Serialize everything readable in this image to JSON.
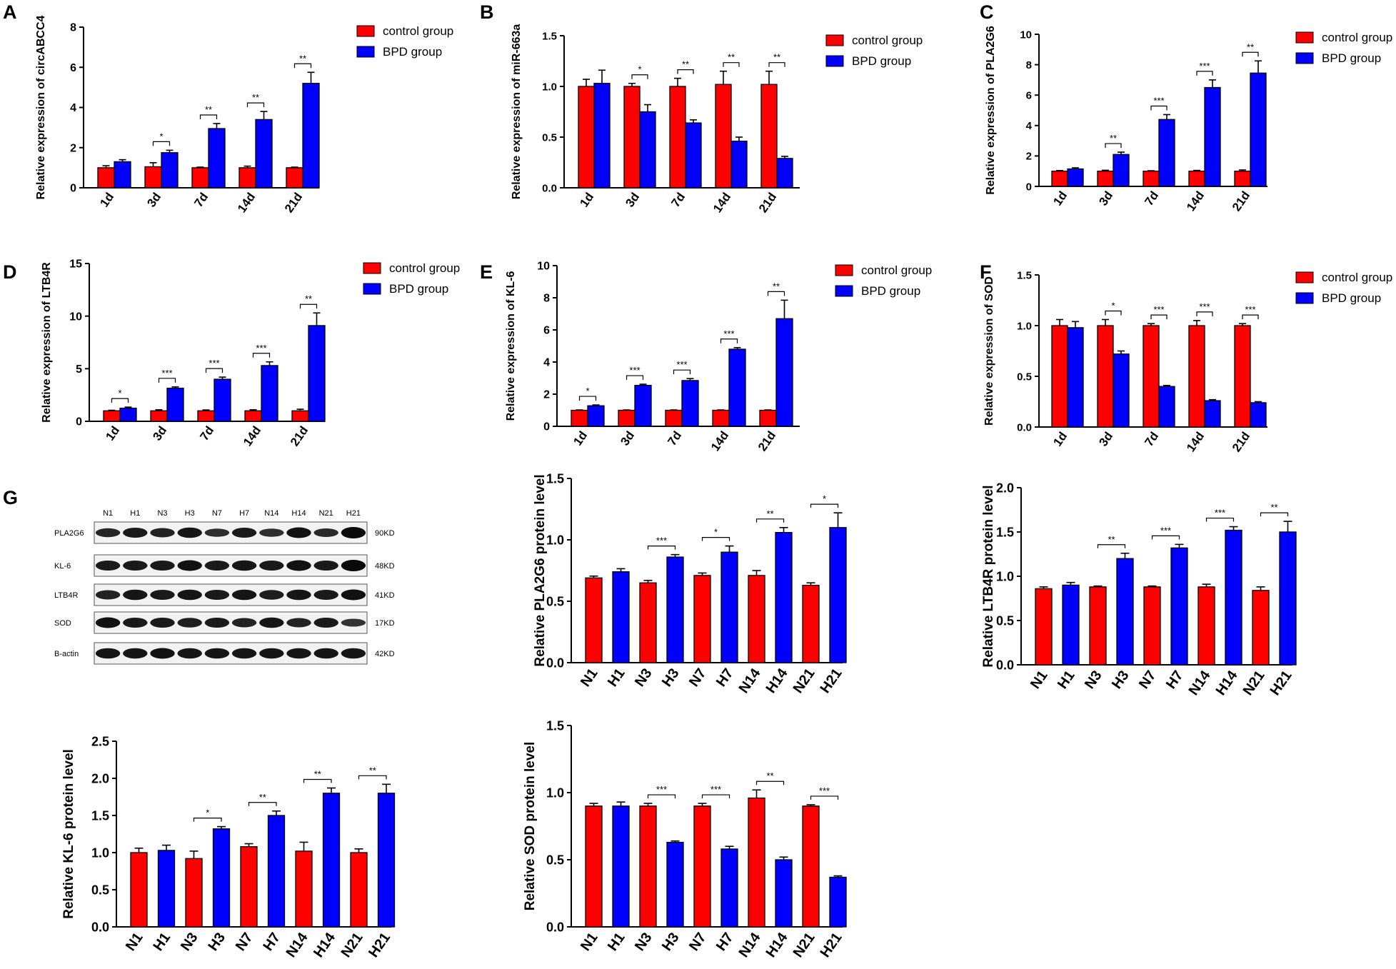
{
  "figure": {
    "panel_labels": [
      "A",
      "B",
      "C",
      "D",
      "E",
      "F",
      "G"
    ],
    "colors": {
      "control": "#ff0000",
      "bpd": "#0000ff",
      "axis": "#000000"
    }
  },
  "western_blot": {
    "lanes": [
      "N1",
      "H1",
      "N3",
      "H3",
      "N7",
      "H7",
      "N14",
      "H14",
      "N21",
      "H21"
    ],
    "rows": [
      {
        "name": "PLA2G6",
        "size": "90KD",
        "intensity": [
          0.65,
          0.8,
          0.7,
          0.85,
          0.55,
          0.8,
          0.55,
          0.9,
          0.6,
          1.0
        ]
      },
      {
        "name": "KL-6",
        "size": "48KD",
        "intensity": [
          0.8,
          0.8,
          0.8,
          0.9,
          0.8,
          0.85,
          0.8,
          0.9,
          0.8,
          1.0
        ]
      },
      {
        "name": "LTB4R",
        "size": "41KD",
        "intensity": [
          0.7,
          0.85,
          0.8,
          0.85,
          0.8,
          0.85,
          0.75,
          0.85,
          0.8,
          0.9
        ]
      },
      {
        "name": "SOD",
        "size": "17KD",
        "intensity": [
          0.9,
          0.8,
          0.8,
          0.75,
          0.8,
          0.7,
          0.85,
          0.7,
          0.8,
          0.5
        ]
      },
      {
        "name": "B-actin",
        "size": "42KD",
        "intensity": [
          0.85,
          0.85,
          0.9,
          0.85,
          0.85,
          0.85,
          0.85,
          0.85,
          0.85,
          0.85
        ]
      }
    ]
  },
  "chart_data": [
    {
      "type": "bar",
      "panel": "A",
      "title": "",
      "ylabel": "Relative expression of circABCC4",
      "xlabel": "",
      "ylim": [
        0,
        8
      ],
      "yticks": [
        "0",
        "2",
        "4",
        "6",
        "8"
      ],
      "categories": [
        "1d",
        "3d",
        "7d",
        "14d",
        "21d"
      ],
      "series": [
        {
          "name": "control group",
          "values": [
            1.0,
            1.05,
            1.0,
            1.0,
            1.0
          ],
          "errors": [
            0.1,
            0.2,
            0.03,
            0.08,
            0.03
          ]
        },
        {
          "name": "BPD group",
          "values": [
            1.3,
            1.75,
            2.95,
            3.4,
            5.2
          ],
          "errors": [
            0.1,
            0.12,
            0.25,
            0.4,
            0.55
          ]
        }
      ],
      "significance": [
        "",
        "*",
        "**",
        "**",
        "**"
      ],
      "legend": "top-right"
    },
    {
      "type": "bar",
      "panel": "B",
      "title": "",
      "ylabel": "Relative expression of miR-663a",
      "xlabel": "",
      "ylim": [
        0,
        1.5
      ],
      "yticks": [
        "0.0",
        "0.5",
        "1.0",
        "1.5"
      ],
      "categories": [
        "1d",
        "3d",
        "7d",
        "14d",
        "21d"
      ],
      "series": [
        {
          "name": "control group",
          "values": [
            1.0,
            1.0,
            1.0,
            1.02,
            1.02
          ],
          "errors": [
            0.07,
            0.03,
            0.08,
            0.13,
            0.13
          ]
        },
        {
          "name": "BPD group",
          "values": [
            1.03,
            0.75,
            0.64,
            0.46,
            0.29
          ],
          "errors": [
            0.13,
            0.07,
            0.03,
            0.04,
            0.02
          ]
        }
      ],
      "significance": [
        "",
        "*",
        "**",
        "**",
        "**"
      ],
      "legend": "top-right"
    },
    {
      "type": "bar",
      "panel": "C",
      "title": "",
      "ylabel": "Relative expression of PLA2G6",
      "xlabel": "",
      "ylim": [
        0,
        10
      ],
      "yticks": [
        "0",
        "2",
        "4",
        "6",
        "8",
        "10"
      ],
      "categories": [
        "1d",
        "3d",
        "7d",
        "14d",
        "21d"
      ],
      "series": [
        {
          "name": "control group",
          "values": [
            1.0,
            1.0,
            1.0,
            1.0,
            1.0
          ],
          "errors": [
            0.04,
            0.06,
            0.03,
            0.05,
            0.08
          ]
        },
        {
          "name": "BPD group",
          "values": [
            1.15,
            2.1,
            4.4,
            6.5,
            7.45
          ],
          "errors": [
            0.07,
            0.15,
            0.32,
            0.5,
            0.8
          ]
        }
      ],
      "significance": [
        "",
        "**",
        "***",
        "***",
        "**"
      ],
      "legend": "top-right"
    },
    {
      "type": "bar",
      "panel": "D",
      "title": "",
      "ylabel": "Relative expression of LTB4R",
      "xlabel": "",
      "ylim": [
        0,
        15
      ],
      "yticks": [
        "0",
        "5",
        "10",
        "15"
      ],
      "categories": [
        "1d",
        "3d",
        "7d",
        "14d",
        "21d"
      ],
      "series": [
        {
          "name": "control group",
          "values": [
            1.0,
            1.0,
            1.0,
            1.0,
            1.0
          ],
          "errors": [
            0.05,
            0.1,
            0.08,
            0.1,
            0.15
          ]
        },
        {
          "name": "BPD group",
          "values": [
            1.25,
            3.15,
            4.0,
            5.3,
            9.1
          ],
          "errors": [
            0.1,
            0.12,
            0.2,
            0.35,
            1.2
          ]
        }
      ],
      "significance": [
        "*",
        "***",
        "***",
        "***",
        "**"
      ],
      "legend": "top-right"
    },
    {
      "type": "bar",
      "panel": "E",
      "title": "",
      "ylabel": "Relative expression of KL-6",
      "xlabel": "",
      "ylim": [
        0,
        10
      ],
      "yticks": [
        "0",
        "2",
        "4",
        "6",
        "8",
        "10"
      ],
      "categories": [
        "1d",
        "3d",
        "7d",
        "14d",
        "21d"
      ],
      "series": [
        {
          "name": "control group",
          "values": [
            1.0,
            1.0,
            1.0,
            1.0,
            1.0
          ],
          "errors": [
            0.02,
            0.02,
            0.02,
            0.02,
            0.02
          ]
        },
        {
          "name": "BPD group",
          "values": [
            1.28,
            2.55,
            2.85,
            4.8,
            6.7
          ],
          "errors": [
            0.05,
            0.07,
            0.12,
            0.1,
            1.15
          ]
        }
      ],
      "significance": [
        "*",
        "***",
        "***",
        "***",
        "**"
      ],
      "legend": "top-right"
    },
    {
      "type": "bar",
      "panel": "F",
      "title": "",
      "ylabel": "Relative expression of SOD",
      "xlabel": "",
      "ylim": [
        0,
        1.5
      ],
      "yticks": [
        "0.0",
        "0.5",
        "1.0",
        "1.5"
      ],
      "categories": [
        "1d",
        "3d",
        "7d",
        "14d",
        "21d"
      ],
      "series": [
        {
          "name": "control group",
          "values": [
            1.0,
            1.0,
            1.0,
            1.0,
            1.0
          ],
          "errors": [
            0.06,
            0.06,
            0.02,
            0.05,
            0.02
          ]
        },
        {
          "name": "BPD group",
          "values": [
            0.98,
            0.72,
            0.4,
            0.26,
            0.24
          ],
          "errors": [
            0.06,
            0.03,
            0.01,
            0.01,
            0.01
          ]
        }
      ],
      "significance": [
        "",
        "*",
        "***",
        "***",
        "***"
      ],
      "legend": "top-right"
    },
    {
      "type": "bar",
      "panel": "G",
      "title": "",
      "ylabel": "Relative PLA2G6 protein level",
      "xlabel": "",
      "ylim": [
        0,
        1.5
      ],
      "yticks": [
        "0.0",
        "0.5",
        "1.0",
        "1.5"
      ],
      "categories": [
        "N1",
        "H1",
        "N3",
        "H3",
        "N7",
        "H7",
        "N14",
        "H14",
        "N21",
        "H21"
      ],
      "values": [
        0.69,
        0.74,
        0.65,
        0.86,
        0.71,
        0.9,
        0.71,
        1.06,
        0.63,
        1.1
      ],
      "errors": [
        0.015,
        0.025,
        0.02,
        0.02,
        0.02,
        0.05,
        0.04,
        0.04,
        0.02,
        0.12
      ],
      "significance": [
        "",
        "***",
        "*",
        "**",
        "*"
      ]
    },
    {
      "type": "bar",
      "panel": "G",
      "title": "",
      "ylabel": "Relative LTB4R protein level",
      "xlabel": "",
      "ylim": [
        0,
        2.0
      ],
      "yticks": [
        "0.0",
        "0.5",
        "1.0",
        "1.5",
        "2.0"
      ],
      "categories": [
        "N1",
        "H1",
        "N3",
        "H3",
        "N7",
        "H7",
        "N14",
        "H14",
        "N21",
        "H21"
      ],
      "values": [
        0.86,
        0.9,
        0.88,
        1.2,
        0.88,
        1.32,
        0.88,
        1.52,
        0.84,
        1.5
      ],
      "errors": [
        0.02,
        0.03,
        0.01,
        0.06,
        0.01,
        0.04,
        0.03,
        0.04,
        0.04,
        0.12
      ],
      "significance": [
        "",
        "**",
        "***",
        "***",
        "**"
      ]
    },
    {
      "type": "bar",
      "panel": "G",
      "title": "",
      "ylabel": "Relative KL-6 protein level",
      "xlabel": "",
      "ylim": [
        0,
        2.5
      ],
      "yticks": [
        "0.0",
        "0.5",
        "1.0",
        "1.5",
        "2.0",
        "2.5"
      ],
      "categories": [
        "N1",
        "H1",
        "N3",
        "H3",
        "N7",
        "H7",
        "N14",
        "H14",
        "N21",
        "H21"
      ],
      "values": [
        1.0,
        1.03,
        0.92,
        1.32,
        1.08,
        1.5,
        1.02,
        1.8,
        1.0,
        1.8
      ],
      "errors": [
        0.06,
        0.07,
        0.1,
        0.03,
        0.04,
        0.06,
        0.12,
        0.07,
        0.05,
        0.12
      ],
      "significance": [
        "",
        "*",
        "**",
        "**",
        "**"
      ]
    },
    {
      "type": "bar",
      "panel": "G",
      "title": "",
      "ylabel": "Relative SOD protein level",
      "xlabel": "",
      "ylim": [
        0,
        1.5
      ],
      "yticks": [
        "0.0",
        "0.5",
        "1.0",
        "1.5"
      ],
      "categories": [
        "N1",
        "H1",
        "N3",
        "H3",
        "N7",
        "H7",
        "N14",
        "H14",
        "N21",
        "H21"
      ],
      "values": [
        0.9,
        0.9,
        0.9,
        0.63,
        0.9,
        0.58,
        0.96,
        0.5,
        0.9,
        0.37
      ],
      "errors": [
        0.02,
        0.03,
        0.02,
        0.01,
        0.02,
        0.02,
        0.06,
        0.02,
        0.01,
        0.01
      ],
      "significance": [
        "",
        "***",
        "***",
        "**",
        "***"
      ]
    }
  ]
}
